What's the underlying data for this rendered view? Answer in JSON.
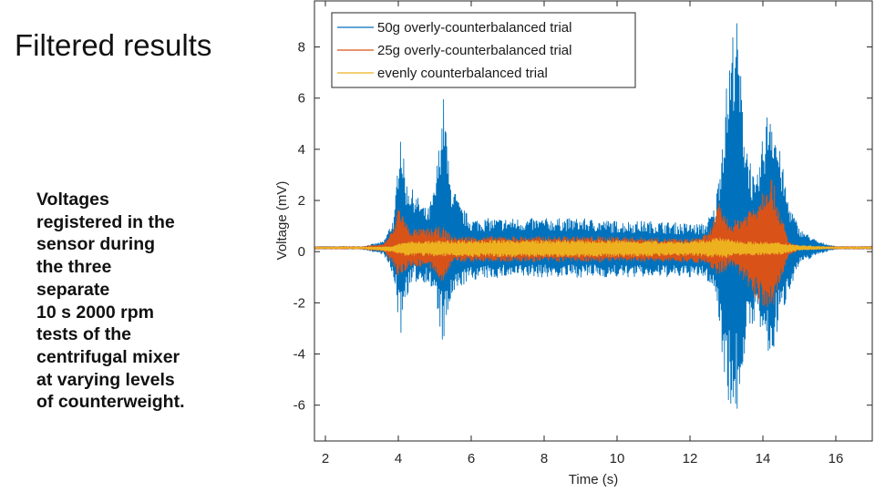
{
  "slide": {
    "title": "Filtered results",
    "caption_lines": [
      "Voltages",
      "registered in the",
      "sensor during",
      "the three",
      "separate",
      "10 s 2000 rpm",
      "tests of the",
      "centrifugal mixer",
      "at varying levels",
      "of counterweight."
    ]
  },
  "chart_data": {
    "type": "line",
    "title": "",
    "xlabel": "Time (s)",
    "ylabel": "Voltage (mV)",
    "xlim": [
      1.7,
      17.0
    ],
    "ylim": [
      -7.4,
      9.8
    ],
    "xticks": [
      2,
      4,
      6,
      8,
      10,
      12,
      14,
      16
    ],
    "yticks": [
      -6,
      -4,
      -2,
      0,
      2,
      4,
      6,
      8
    ],
    "grid": false,
    "legend_position": "top-left",
    "description": "Oscillating voltage signals; each series is described by its upper/lower envelope (mV) over time (s).",
    "series": [
      {
        "name": "50g overly-counterbalanced trial",
        "color": "#0072BD",
        "envelope": {
          "t": [
            1.7,
            3.0,
            3.6,
            3.9,
            4.05,
            4.2,
            4.5,
            4.8,
            5.0,
            5.25,
            5.4,
            5.7,
            6.0,
            7.0,
            8.0,
            9.0,
            10.0,
            11.0,
            12.0,
            12.4,
            12.7,
            13.0,
            13.25,
            13.5,
            13.8,
            14.0,
            14.2,
            14.4,
            14.7,
            15.0,
            15.5,
            16.0,
            17.0
          ],
          "upper": [
            0.2,
            0.2,
            0.4,
            1.5,
            5.2,
            2.8,
            2.2,
            1.6,
            2.5,
            6.2,
            3.0,
            1.8,
            1.3,
            1.3,
            1.3,
            1.3,
            1.2,
            1.2,
            1.1,
            1.1,
            1.8,
            6.5,
            9.7,
            5.0,
            2.5,
            4.5,
            6.2,
            4.5,
            2.0,
            0.9,
            0.4,
            0.2,
            0.2
          ],
          "lower": [
            0.1,
            0.1,
            -0.1,
            -1.2,
            -3.5,
            -1.8,
            -1.2,
            -1.2,
            -1.8,
            -4.0,
            -2.2,
            -1.4,
            -1.1,
            -1.0,
            -1.0,
            -1.0,
            -1.0,
            -1.0,
            -1.0,
            -1.0,
            -1.6,
            -5.5,
            -7.0,
            -4.0,
            -2.5,
            -3.5,
            -4.6,
            -3.2,
            -1.6,
            -0.5,
            -0.1,
            0.1,
            0.1
          ]
        }
      },
      {
        "name": "25g overly-counterbalanced trial",
        "color": "#D95319",
        "envelope": {
          "t": [
            1.7,
            3.0,
            3.6,
            3.9,
            4.0,
            4.3,
            4.8,
            5.2,
            5.5,
            6.0,
            8.0,
            10.0,
            12.0,
            12.5,
            12.8,
            13.1,
            13.4,
            13.8,
            14.2,
            14.5,
            14.7,
            15.0,
            17.0
          ],
          "upper": [
            0.2,
            0.2,
            0.3,
            1.0,
            1.9,
            0.9,
            0.9,
            1.0,
            0.6,
            0.6,
            0.6,
            0.6,
            0.5,
            0.7,
            1.9,
            1.1,
            1.4,
            2.0,
            3.2,
            1.5,
            0.4,
            0.2,
            0.2
          ],
          "lower": [
            0.1,
            0.1,
            0.0,
            -0.6,
            -1.1,
            -0.6,
            -0.6,
            -1.2,
            -0.4,
            -0.4,
            -0.4,
            -0.4,
            -0.4,
            -0.5,
            -1.0,
            -0.6,
            -1.0,
            -1.8,
            -2.6,
            -1.2,
            -0.2,
            0.1,
            0.1
          ]
        }
      },
      {
        "name": "evenly counterbalanced trial",
        "color": "#EDB120",
        "envelope": {
          "t": [
            1.7,
            3.0,
            3.8,
            4.2,
            6.0,
            8.0,
            10.0,
            12.0,
            12.8,
            13.5,
            14.5,
            15.0,
            16.0,
            17.0
          ],
          "upper": [
            0.18,
            0.18,
            0.2,
            0.4,
            0.45,
            0.45,
            0.45,
            0.4,
            0.55,
            0.4,
            0.35,
            0.25,
            0.18,
            0.18
          ],
          "lower": [
            0.12,
            0.12,
            0.0,
            -0.15,
            -0.2,
            -0.2,
            -0.2,
            -0.15,
            -0.25,
            -0.15,
            -0.1,
            0.05,
            0.12,
            0.12
          ]
        }
      }
    ]
  }
}
